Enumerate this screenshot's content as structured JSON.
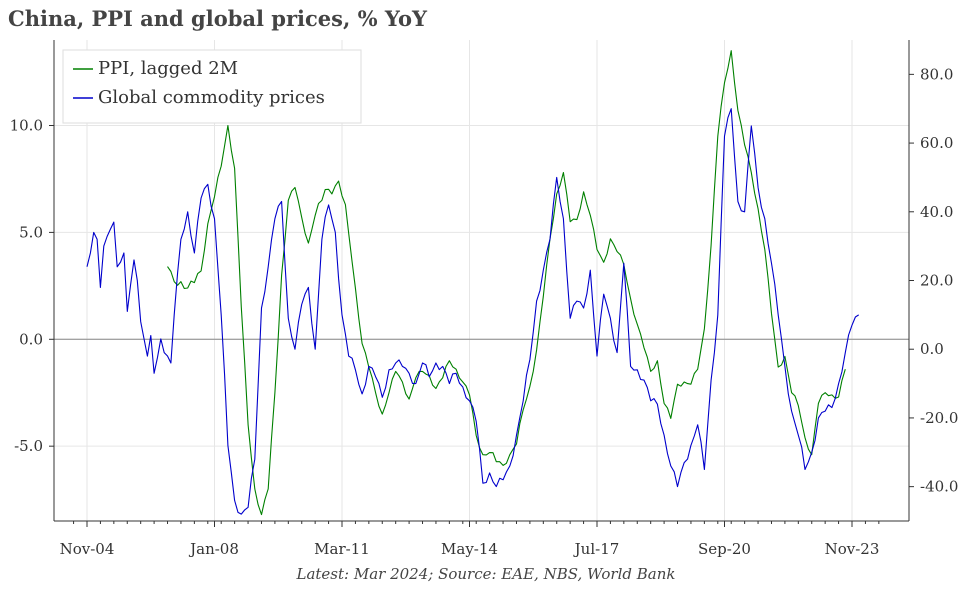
{
  "title": "China, PPI and global prices, % YoY",
  "source": "Latest: Mar 2024; Source: EAE, NBS, World Bank",
  "chart_data": {
    "type": "line",
    "x_ticks": [
      "Nov-04",
      "Jan-08",
      "Mar-11",
      "May-14",
      "Jul-17",
      "Sep-20",
      "Nov-23"
    ],
    "x_tick_index": [
      0,
      38,
      76,
      114,
      152,
      190,
      228
    ],
    "y_left": {
      "range": [
        -8.5,
        14.0
      ],
      "ticks": [
        "10.0",
        "5.0",
        "0.0",
        "-5.0"
      ],
      "tick_values": [
        10,
        5,
        0,
        -5
      ]
    },
    "y_right": {
      "range": [
        -50,
        90
      ],
      "ticks": [
        "80.0",
        "60.0",
        "40.0",
        "20.0",
        "0.0",
        "-20.0",
        "-40.0"
      ],
      "tick_values": [
        80,
        60,
        40,
        20,
        0,
        -20,
        -40
      ]
    },
    "grid": true,
    "legend_position": "top-left",
    "series": [
      {
        "name": "PPI, lagged 2M",
        "color": "#008000",
        "axis": "left",
        "start_index": 24,
        "knots": [
          [
            24,
            3.4
          ],
          [
            26,
            2.7
          ],
          [
            30,
            2.4
          ],
          [
            34,
            3.2
          ],
          [
            36,
            5.4
          ],
          [
            40,
            8.1
          ],
          [
            42,
            10.0
          ],
          [
            44,
            8.0
          ],
          [
            46,
            1.5
          ],
          [
            48,
            -4.0
          ],
          [
            50,
            -7.0
          ],
          [
            52,
            -8.2
          ],
          [
            54,
            -7.0
          ],
          [
            56,
            -2.5
          ],
          [
            58,
            3.0
          ],
          [
            60,
            6.5
          ],
          [
            62,
            7.1
          ],
          [
            64,
            5.7
          ],
          [
            66,
            4.5
          ],
          [
            68,
            5.8
          ],
          [
            71,
            7.0
          ],
          [
            73,
            6.8
          ],
          [
            75,
            7.4
          ],
          [
            77,
            6.3
          ],
          [
            80,
            2.4
          ],
          [
            82,
            -0.2
          ],
          [
            84,
            -1.3
          ],
          [
            86,
            -2.5
          ],
          [
            88,
            -3.5
          ],
          [
            90,
            -2.5
          ],
          [
            92,
            -1.5
          ],
          [
            94,
            -2.0
          ],
          [
            96,
            -2.8
          ],
          [
            98,
            -1.8
          ],
          [
            100,
            -1.5
          ],
          [
            102,
            -1.7
          ],
          [
            104,
            -2.3
          ],
          [
            106,
            -1.8
          ],
          [
            108,
            -1.0
          ],
          [
            110,
            -1.4
          ],
          [
            112,
            -2.0
          ],
          [
            114,
            -2.6
          ],
          [
            116,
            -4.5
          ],
          [
            118,
            -5.4
          ],
          [
            120,
            -5.3
          ],
          [
            124,
            -5.9
          ],
          [
            126,
            -5.4
          ],
          [
            128,
            -4.9
          ],
          [
            130,
            -3.3
          ],
          [
            132,
            -2.2
          ],
          [
            134,
            -0.5
          ],
          [
            136,
            2.0
          ],
          [
            138,
            4.7
          ],
          [
            140,
            6.8
          ],
          [
            142,
            7.8
          ],
          [
            144,
            5.5
          ],
          [
            146,
            5.6
          ],
          [
            148,
            6.9
          ],
          [
            150,
            5.8
          ],
          [
            152,
            4.2
          ],
          [
            154,
            3.6
          ],
          [
            156,
            4.7
          ],
          [
            158,
            4.1
          ],
          [
            160,
            3.5
          ],
          [
            162,
            1.9
          ],
          [
            164,
            0.7
          ],
          [
            166,
            -0.4
          ],
          [
            168,
            -1.5
          ],
          [
            170,
            -1.0
          ],
          [
            172,
            -3.0
          ],
          [
            174,
            -3.7
          ],
          [
            176,
            -2.1
          ],
          [
            178,
            -2.0
          ],
          [
            180,
            -2.1
          ],
          [
            182,
            -1.4
          ],
          [
            184,
            0.5
          ],
          [
            186,
            4.4
          ],
          [
            188,
            9.5
          ],
          [
            190,
            12.0
          ],
          [
            192,
            13.5
          ],
          [
            194,
            10.7
          ],
          [
            196,
            9.1
          ],
          [
            198,
            7.8
          ],
          [
            200,
            6.1
          ],
          [
            202,
            4.2
          ],
          [
            204,
            1.2
          ],
          [
            206,
            -1.3
          ],
          [
            208,
            -0.8
          ],
          [
            210,
            -2.5
          ],
          [
            212,
            -3.1
          ],
          [
            214,
            -4.6
          ],
          [
            216,
            -5.4
          ],
          [
            218,
            -3.0
          ],
          [
            220,
            -2.5
          ],
          [
            222,
            -2.6
          ],
          [
            224,
            -2.7
          ],
          [
            226,
            -1.4
          ]
        ]
      },
      {
        "name": "Global commodity prices",
        "color": "#0000cc",
        "axis": "right",
        "start_index": 0,
        "knots": [
          [
            0,
            24
          ],
          [
            1,
            28
          ],
          [
            2,
            34
          ],
          [
            3,
            32
          ],
          [
            4,
            18
          ],
          [
            5,
            30
          ],
          [
            7,
            35
          ],
          [
            8,
            37
          ],
          [
            9,
            24
          ],
          [
            11,
            28
          ],
          [
            12,
            11
          ],
          [
            14,
            26
          ],
          [
            15,
            20
          ],
          [
            16,
            8
          ],
          [
            18,
            -2
          ],
          [
            19,
            4
          ],
          [
            20,
            -7
          ],
          [
            22,
            3
          ],
          [
            23,
            -1
          ],
          [
            25,
            -4
          ],
          [
            26,
            10
          ],
          [
            28,
            32
          ],
          [
            30,
            40
          ],
          [
            32,
            28
          ],
          [
            34,
            44
          ],
          [
            36,
            48
          ],
          [
            38,
            38
          ],
          [
            40,
            10
          ],
          [
            42,
            -28
          ],
          [
            44,
            -44
          ],
          [
            46,
            -48
          ],
          [
            48,
            -46
          ],
          [
            50,
            -32
          ],
          [
            52,
            12
          ],
          [
            54,
            24
          ],
          [
            56,
            38
          ],
          [
            58,
            43
          ],
          [
            60,
            9
          ],
          [
            62,
            0
          ],
          [
            64,
            13
          ],
          [
            66,
            18
          ],
          [
            68,
            0
          ],
          [
            70,
            32
          ],
          [
            72,
            42
          ],
          [
            74,
            34
          ],
          [
            76,
            10
          ],
          [
            78,
            -2
          ],
          [
            80,
            -6
          ],
          [
            82,
            -13
          ],
          [
            84,
            -5
          ],
          [
            86,
            -8
          ],
          [
            88,
            -14
          ],
          [
            90,
            -6
          ],
          [
            92,
            -4
          ],
          [
            94,
            -5
          ],
          [
            96,
            -7
          ],
          [
            98,
            -10
          ],
          [
            100,
            -4
          ],
          [
            102,
            -8
          ],
          [
            104,
            -4
          ],
          [
            106,
            -5
          ],
          [
            108,
            -10
          ],
          [
            110,
            -7
          ],
          [
            112,
            -11
          ],
          [
            114,
            -15
          ],
          [
            116,
            -21
          ],
          [
            118,
            -39
          ],
          [
            120,
            -36
          ],
          [
            122,
            -40
          ],
          [
            124,
            -38
          ],
          [
            126,
            -34
          ],
          [
            128,
            -25
          ],
          [
            130,
            -15
          ],
          [
            132,
            -3
          ],
          [
            134,
            14
          ],
          [
            136,
            23
          ],
          [
            138,
            32
          ],
          [
            140,
            50
          ],
          [
            142,
            38
          ],
          [
            144,
            9
          ],
          [
            146,
            14
          ],
          [
            148,
            12
          ],
          [
            150,
            23
          ],
          [
            152,
            -2
          ],
          [
            154,
            16
          ],
          [
            156,
            9
          ],
          [
            158,
            -1
          ],
          [
            160,
            25
          ],
          [
            162,
            -5
          ],
          [
            164,
            -6
          ],
          [
            166,
            -9
          ],
          [
            168,
            -15
          ],
          [
            170,
            -16
          ],
          [
            172,
            -25
          ],
          [
            174,
            -34
          ],
          [
            176,
            -40
          ],
          [
            178,
            -33
          ],
          [
            180,
            -28
          ],
          [
            182,
            -22
          ],
          [
            184,
            -35
          ],
          [
            186,
            -9
          ],
          [
            188,
            10
          ],
          [
            190,
            62
          ],
          [
            192,
            70
          ],
          [
            194,
            43
          ],
          [
            196,
            40
          ],
          [
            198,
            65
          ],
          [
            200,
            47
          ],
          [
            202,
            38
          ],
          [
            204,
            25
          ],
          [
            206,
            10
          ],
          [
            208,
            -5
          ],
          [
            210,
            -18
          ],
          [
            212,
            -25
          ],
          [
            214,
            -35
          ],
          [
            216,
            -30
          ],
          [
            218,
            -20
          ],
          [
            220,
            -18
          ],
          [
            222,
            -17
          ],
          [
            224,
            -10
          ],
          [
            226,
            -1
          ],
          [
            228,
            7
          ],
          [
            230,
            10
          ]
        ]
      }
    ]
  }
}
